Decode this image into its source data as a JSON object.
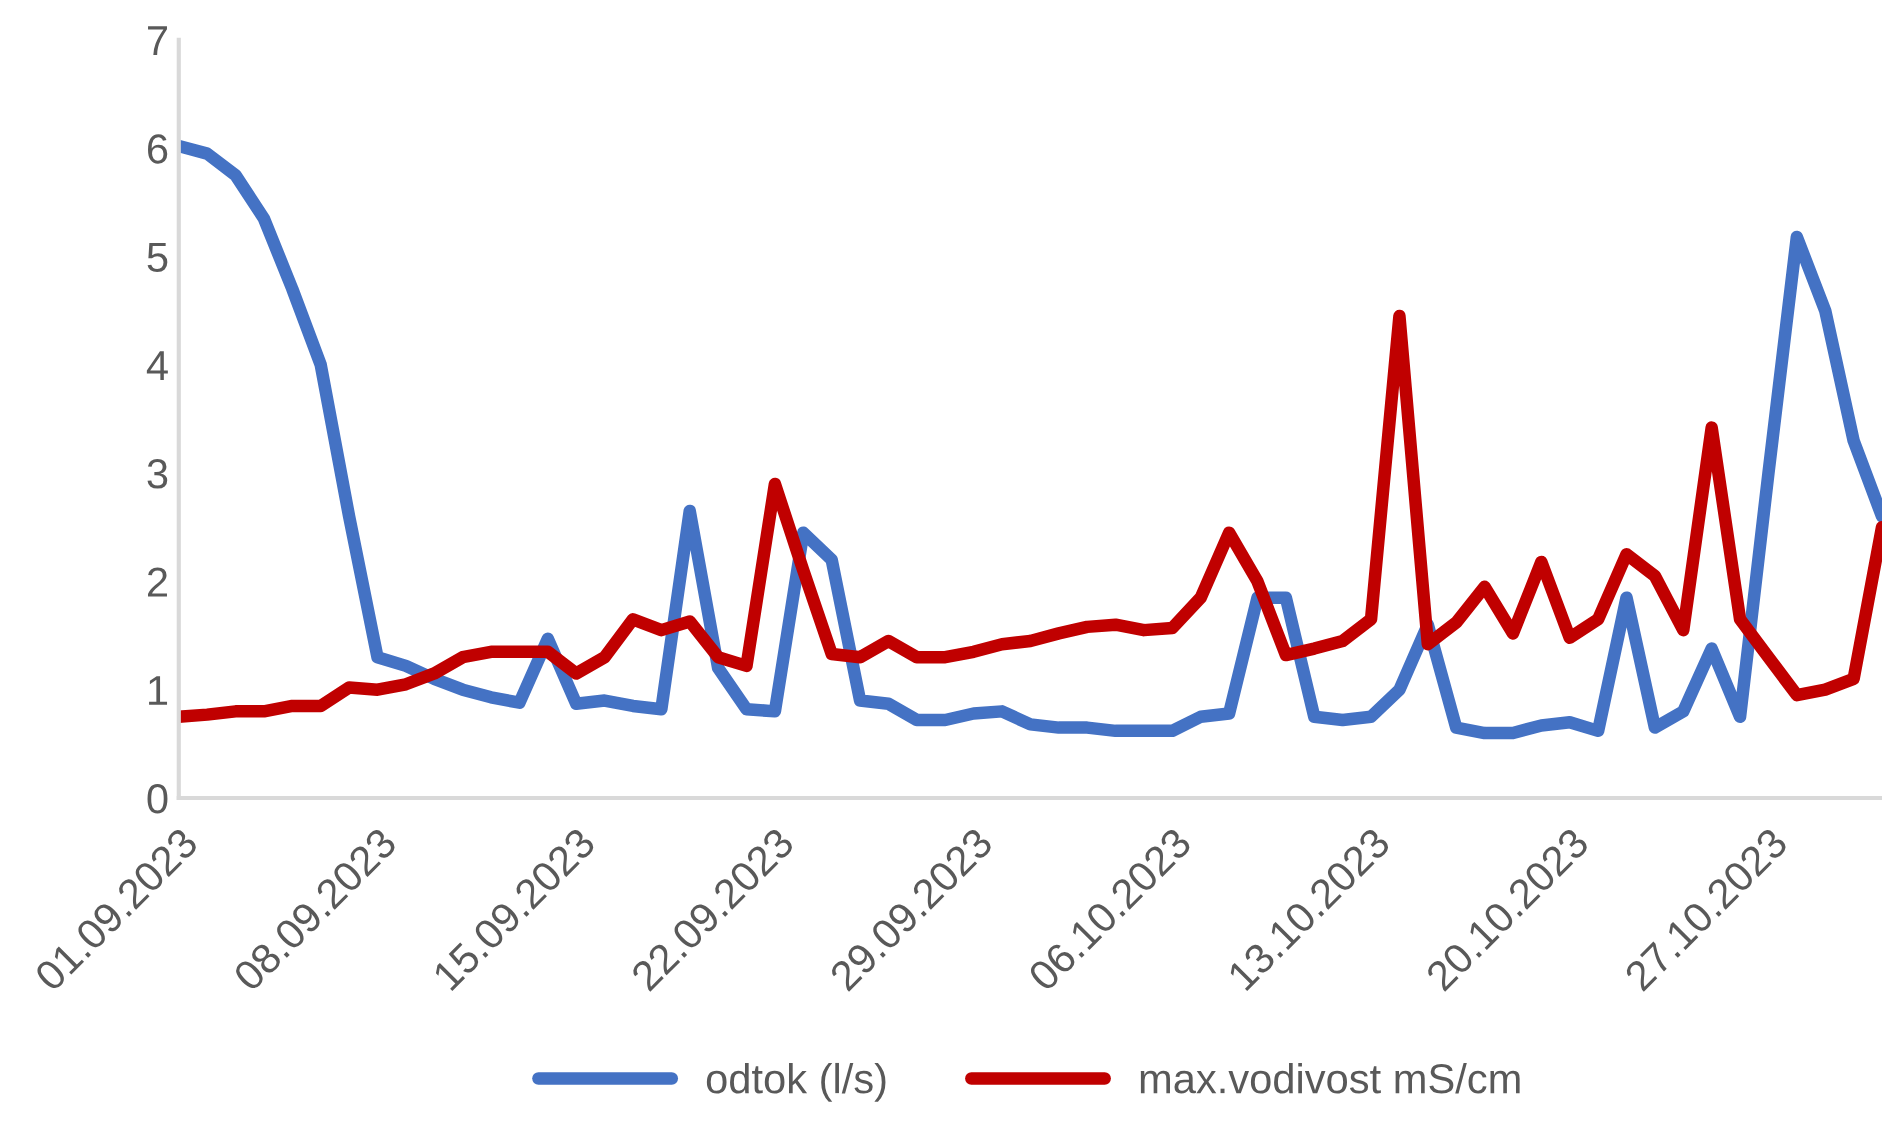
{
  "chart_data": {
    "type": "line",
    "x": [
      "2023-09-01",
      "2023-09-02",
      "2023-09-03",
      "2023-09-04",
      "2023-09-05",
      "2023-09-06",
      "2023-09-07",
      "2023-09-08",
      "2023-09-09",
      "2023-09-10",
      "2023-09-11",
      "2023-09-12",
      "2023-09-13",
      "2023-09-14",
      "2023-09-15",
      "2023-09-16",
      "2023-09-17",
      "2023-09-18",
      "2023-09-19",
      "2023-09-20",
      "2023-09-21",
      "2023-09-22",
      "2023-09-23",
      "2023-09-24",
      "2023-09-25",
      "2023-09-26",
      "2023-09-27",
      "2023-09-28",
      "2023-09-29",
      "2023-09-30",
      "2023-10-01",
      "2023-10-02",
      "2023-10-03",
      "2023-10-04",
      "2023-10-05",
      "2023-10-06",
      "2023-10-07",
      "2023-10-08",
      "2023-10-09",
      "2023-10-10",
      "2023-10-11",
      "2023-10-12",
      "2023-10-13",
      "2023-10-14",
      "2023-10-15",
      "2023-10-16",
      "2023-10-17",
      "2023-10-18",
      "2023-10-19",
      "2023-10-20",
      "2023-10-21",
      "2023-10-22",
      "2023-10-23",
      "2023-10-24",
      "2023-10-25",
      "2023-10-26",
      "2023-10-27",
      "2023-10-28",
      "2023-10-29",
      "2023-10-30",
      "2023-10-31"
    ],
    "series": [
      {
        "name": "odtok (l/s)",
        "color": "#4472c4",
        "values": [
          6.02,
          5.95,
          5.75,
          5.35,
          4.7,
          4.0,
          2.6,
          1.3,
          1.22,
          1.1,
          1.0,
          0.93,
          0.88,
          1.47,
          0.87,
          0.9,
          0.85,
          0.82,
          2.65,
          1.2,
          0.82,
          0.8,
          2.45,
          2.2,
          0.9,
          0.87,
          0.72,
          0.72,
          0.78,
          0.8,
          0.68,
          0.65,
          0.65,
          0.62,
          0.62,
          0.62,
          0.75,
          0.78,
          1.85,
          1.85,
          0.75,
          0.72,
          0.75,
          1.0,
          1.6,
          0.65,
          0.6,
          0.6,
          0.67,
          0.7,
          0.62,
          1.85,
          0.65,
          0.8,
          1.38,
          0.75,
          3.0,
          5.18,
          4.5,
          3.3,
          2.6
        ]
      },
      {
        "name": "max.vodivost mS/cm",
        "color": "#c00000",
        "values": [
          0.75,
          0.77,
          0.8,
          0.8,
          0.85,
          0.85,
          1.02,
          1.0,
          1.05,
          1.15,
          1.3,
          1.35,
          1.35,
          1.35,
          1.15,
          1.3,
          1.65,
          1.55,
          1.63,
          1.3,
          1.22,
          2.9,
          2.1,
          1.33,
          1.3,
          1.45,
          1.3,
          1.3,
          1.35,
          1.42,
          1.45,
          1.52,
          1.58,
          1.6,
          1.55,
          1.57,
          1.85,
          2.45,
          2.0,
          1.32,
          1.38,
          1.45,
          1.65,
          4.45,
          1.42,
          1.62,
          1.95,
          1.52,
          2.18,
          1.48,
          1.65,
          2.25,
          2.05,
          1.55,
          3.42,
          1.65,
          1.3,
          0.95,
          1.0,
          1.1,
          2.5
        ]
      }
    ],
    "xlim": [
      "2023-09-01",
      "2023-10-31"
    ],
    "xticks": [
      {
        "value": "2023-09-01",
        "label": "01.09.2023"
      },
      {
        "value": "2023-09-08",
        "label": "08.09.2023"
      },
      {
        "value": "2023-09-15",
        "label": "15.09.2023"
      },
      {
        "value": "2023-09-22",
        "label": "22.09.2023"
      },
      {
        "value": "2023-09-29",
        "label": "29.09.2023"
      },
      {
        "value": "2023-10-06",
        "label": "06.10.2023"
      },
      {
        "value": "2023-10-13",
        "label": "13.10.2023"
      },
      {
        "value": "2023-10-20",
        "label": "20.10.2023"
      },
      {
        "value": "2023-10-27",
        "label": "27.10.2023"
      }
    ],
    "ylim": [
      0,
      7
    ],
    "yticks": [
      0,
      1,
      2,
      3,
      4,
      5,
      6,
      7
    ],
    "grid": false,
    "legend": "bottom"
  }
}
